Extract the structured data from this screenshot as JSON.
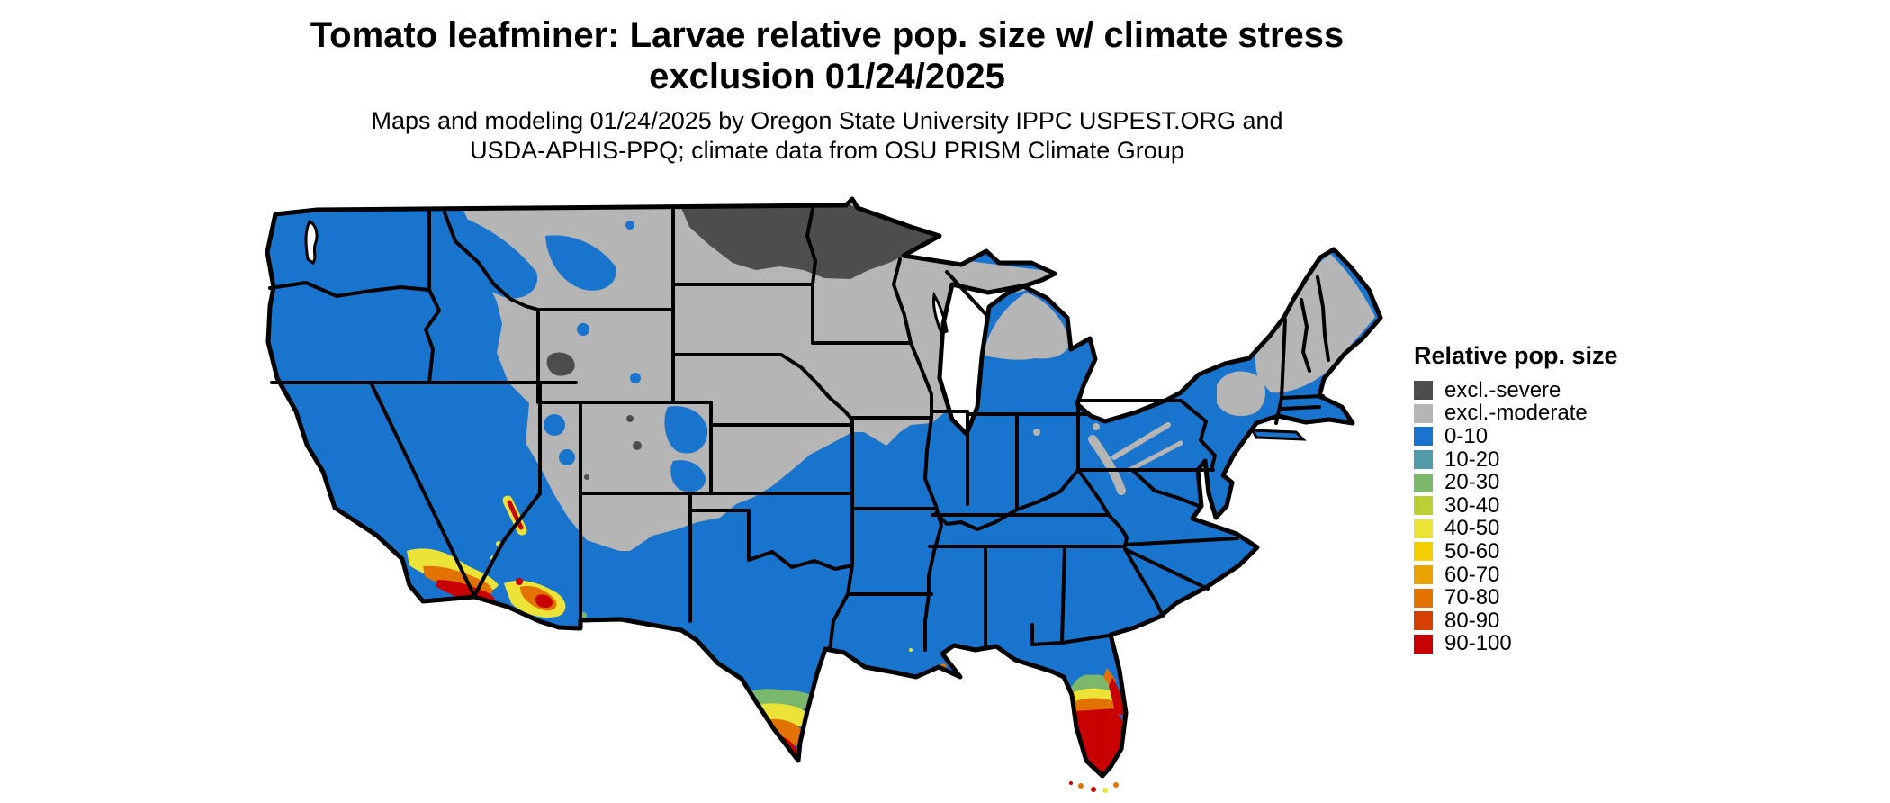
{
  "header": {
    "title_line1": "Tomato leafminer: Larvae relative pop. size w/ climate stress",
    "title_line2": "exclusion 01/24/2025",
    "subtitle_line1": "Maps and modeling 01/24/2025 by Oregon State University IPPC USPEST.ORG and",
    "subtitle_line2": "USDA-APHIS-PPQ; climate data from OSU PRISM Climate Group"
  },
  "legend": {
    "title": "Relative pop. size",
    "items": [
      {
        "label": "excl.-severe",
        "color": "#4D4D4D"
      },
      {
        "label": "excl.-moderate",
        "color": "#B5B5B5"
      },
      {
        "label": "0-10",
        "color": "#1874CD"
      },
      {
        "label": "10-20",
        "color": "#4F9BA8"
      },
      {
        "label": "20-30",
        "color": "#7CB86B"
      },
      {
        "label": "30-40",
        "color": "#BCCF33"
      },
      {
        "label": "40-50",
        "color": "#EBE338"
      },
      {
        "label": "50-60",
        "color": "#F5CE00"
      },
      {
        "label": "60-70",
        "color": "#E9A300"
      },
      {
        "label": "70-80",
        "color": "#E27300"
      },
      {
        "label": "80-90",
        "color": "#D64000"
      },
      {
        "label": "90-100",
        "color": "#C80000"
      }
    ]
  },
  "map": {
    "region": "Continental United States",
    "type": "raster choropleth with state borders",
    "excl_severe_visible_areas": [
      "northern North Dakota",
      "northern Minnesota",
      "south-central Wyoming patch"
    ],
    "excl_moderate_visible_areas": [
      "northern Rockies and plains",
      "upper Midwest",
      "northern New England",
      "Adirondacks"
    ],
    "high_population_hotspots": [
      "coastal Southern California",
      "southern Arizona",
      "southern tip of Texas",
      "central and southern Florida",
      "Florida Keys"
    ]
  }
}
